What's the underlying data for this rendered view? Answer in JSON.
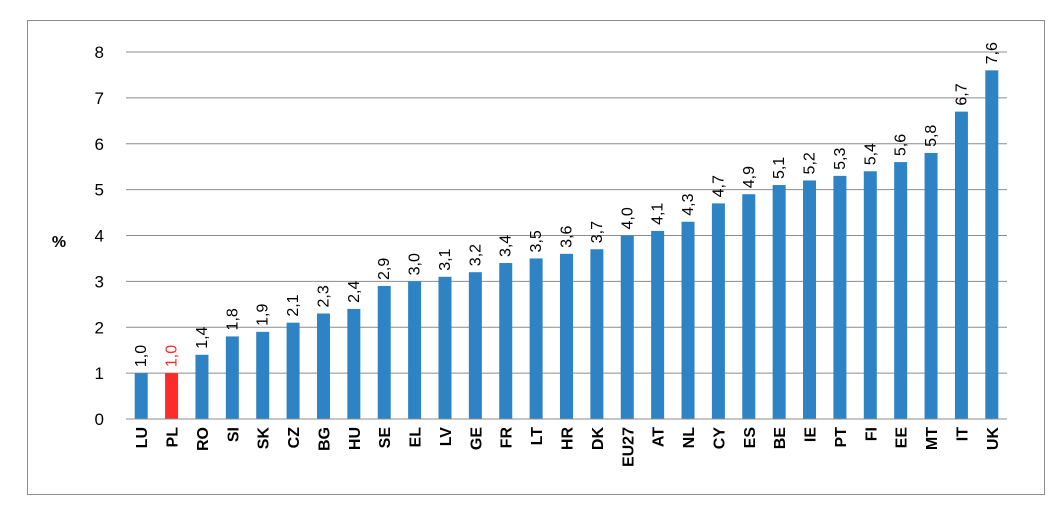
{
  "chart_data": {
    "type": "bar",
    "ylabel": "%",
    "ylim": [
      0,
      8
    ],
    "yticks": [
      "0",
      "1",
      "2",
      "3",
      "4",
      "5",
      "6",
      "7",
      "8"
    ],
    "grid": true,
    "bar_color": "#2e83c4",
    "highlight_color": "#ff2a2a",
    "highlight_category": "PL",
    "categories": [
      "LU",
      "PL",
      "RO",
      "SI",
      "SK",
      "CZ",
      "BG",
      "HU",
      "SE",
      "EL",
      "LV",
      "GE",
      "FR",
      "LT",
      "HR",
      "DK",
      "EU27",
      "AT",
      "NL",
      "CY",
      "ES",
      "BE",
      "IE",
      "PT",
      "FI",
      "EE",
      "MT",
      "IT",
      "UK"
    ],
    "values": [
      1.0,
      1.0,
      1.4,
      1.8,
      1.9,
      2.1,
      2.3,
      2.4,
      2.9,
      3.0,
      3.1,
      3.2,
      3.4,
      3.5,
      3.6,
      3.7,
      4.0,
      4.1,
      4.3,
      4.7,
      4.9,
      5.1,
      5.2,
      5.3,
      5.4,
      5.6,
      5.8,
      6.7,
      7.6
    ],
    "value_labels": [
      "1,0",
      "1,0",
      "1,4",
      "1,8",
      "1,9",
      "2,1",
      "2,3",
      "2,4",
      "2,9",
      "3,0",
      "3,1",
      "3,2",
      "3,4",
      "3,5",
      "3,6",
      "3,7",
      "4,0",
      "4,1",
      "4,3",
      "4,7",
      "4,9",
      "5,1",
      "5,2",
      "5,3",
      "5,4",
      "5,6",
      "5,8",
      "6,7",
      "7,6"
    ]
  }
}
